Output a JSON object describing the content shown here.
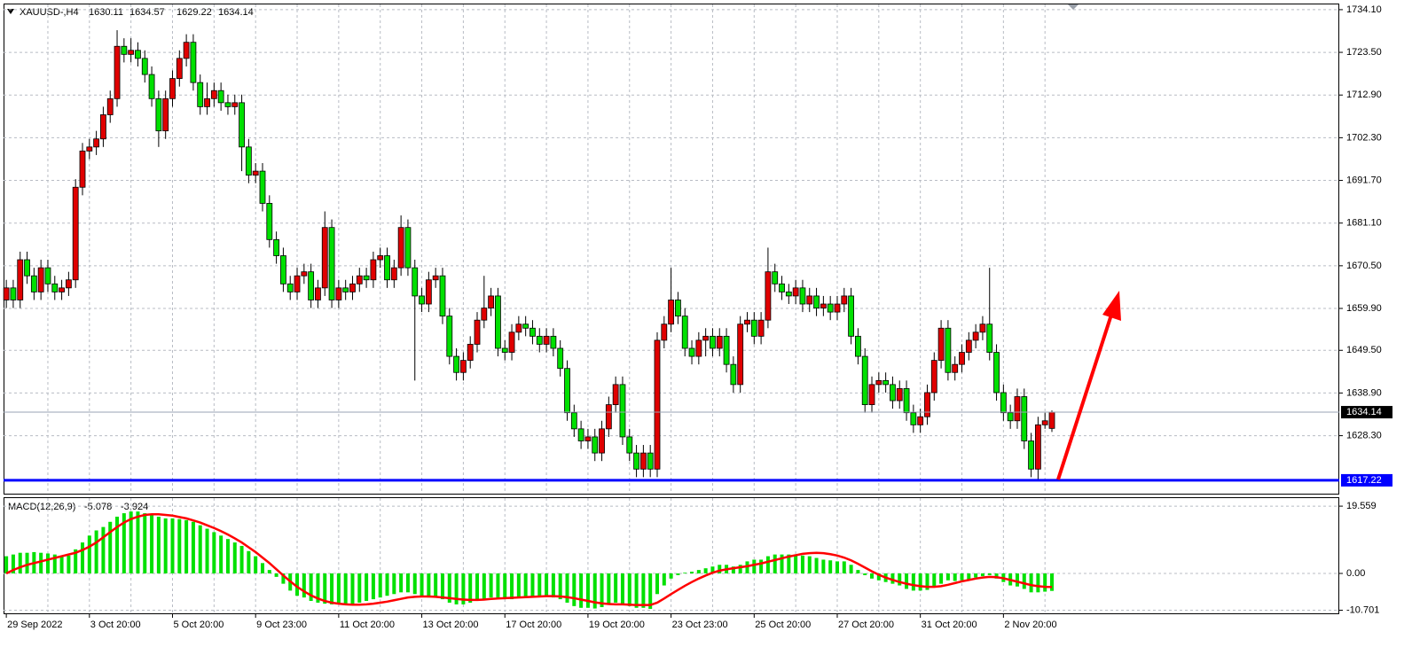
{
  "chart_data": [
    {
      "type": "candlestick",
      "title": "XAUUSD-,H4",
      "open": [
        1662,
        1665,
        1662,
        1672,
        1668,
        1664,
        1670,
        1666,
        1664,
        1665,
        1667,
        1690,
        1699,
        1700,
        1702,
        1708,
        1712,
        1725,
        1723,
        1724,
        1722,
        1718,
        1712,
        1704,
        1712,
        1717,
        1722,
        1726,
        1716,
        1710,
        1712,
        1714,
        1711,
        1710,
        1711,
        1700,
        1693,
        1694,
        1686,
        1677,
        1673,
        1666,
        1664,
        1668,
        1669,
        1662,
        1665,
        1680,
        1662,
        1665,
        1664,
        1666,
        1668,
        1667,
        1672,
        1673,
        1667,
        1670,
        1680,
        1670,
        1663,
        1661,
        1667,
        1668,
        1658,
        1648,
        1644,
        1647,
        1651,
        1657,
        1660,
        1663,
        1650,
        1649,
        1654,
        1656,
        1655,
        1653,
        1651,
        1653,
        1650,
        1645,
        1634,
        1630,
        1627,
        1628,
        1624,
        1630,
        1636,
        1641,
        1628,
        1624,
        1620,
        1624,
        1620,
        1652,
        1656,
        1662,
        1658,
        1650,
        1648,
        1652,
        1653,
        1650,
        1653,
        1646,
        1641,
        1656,
        1657,
        1653,
        1657,
        1669,
        1666,
        1664,
        1663,
        1665,
        1661,
        1663,
        1660,
        1661,
        1659,
        1661,
        1663,
        1653,
        1648,
        1636,
        1641,
        1642,
        1641,
        1637,
        1640,
        1634,
        1631,
        1633,
        1639,
        1647,
        1655,
        1644,
        1646,
        1649,
        1652,
        1654,
        1656,
        1649,
        1639,
        1634,
        1632,
        1638,
        1627,
        1620,
        1631,
        1630.11
      ],
      "high": [
        1667,
        1667,
        1674,
        1674,
        1670,
        1672,
        1672,
        1668,
        1667,
        1669,
        1692,
        1701,
        1702,
        1704,
        1710,
        1714,
        1729,
        1727,
        1727,
        1726,
        1724,
        1720,
        1714,
        1714,
        1719,
        1724,
        1728,
        1728,
        1718,
        1716,
        1716,
        1716,
        1713,
        1713,
        1713,
        1702,
        1696,
        1696,
        1688,
        1679,
        1675,
        1668,
        1670,
        1671,
        1671,
        1667,
        1684,
        1682,
        1667,
        1667,
        1668,
        1670,
        1670,
        1674,
        1675,
        1675,
        1672,
        1683,
        1682,
        1672,
        1665,
        1669,
        1670,
        1670,
        1660,
        1650,
        1649,
        1653,
        1659,
        1668,
        1665,
        1665,
        1652,
        1656,
        1658,
        1658,
        1657,
        1655,
        1655,
        1655,
        1652,
        1647,
        1636,
        1632,
        1630,
        1630,
        1632,
        1638,
        1643,
        1643,
        1630,
        1626,
        1626,
        1626,
        1654,
        1658,
        1670,
        1664,
        1660,
        1652,
        1654,
        1655,
        1655,
        1655,
        1655,
        1648,
        1658,
        1659,
        1659,
        1659,
        1675,
        1671,
        1668,
        1666,
        1667,
        1667,
        1665,
        1665,
        1663,
        1663,
        1663,
        1665,
        1665,
        1655,
        1650,
        1643,
        1644,
        1644,
        1643,
        1642,
        1642,
        1636,
        1635,
        1641,
        1649,
        1657,
        1657,
        1648,
        1651,
        1654,
        1656,
        1658,
        1670,
        1651,
        1641,
        1636,
        1640,
        1640,
        1629,
        1633,
        1634,
        1634.57
      ],
      "low": [
        1660,
        1660,
        1660,
        1666,
        1662,
        1662,
        1664,
        1662,
        1662,
        1663,
        1665,
        1688,
        1697,
        1698,
        1700,
        1706,
        1710,
        1721,
        1721,
        1720,
        1716,
        1710,
        1700,
        1702,
        1710,
        1715,
        1720,
        1714,
        1708,
        1708,
        1710,
        1709,
        1708,
        1708,
        1694,
        1691,
        1691,
        1684,
        1675,
        1671,
        1664,
        1662,
        1662,
        1666,
        1660,
        1660,
        1663,
        1660,
        1660,
        1662,
        1662,
        1664,
        1665,
        1665,
        1670,
        1665,
        1665,
        1668,
        1668,
        1642,
        1659,
        1659,
        1665,
        1656,
        1646,
        1642,
        1642,
        1645,
        1649,
        1655,
        1658,
        1648,
        1647,
        1647,
        1652,
        1653,
        1651,
        1649,
        1649,
        1648,
        1643,
        1632,
        1628,
        1625,
        1625,
        1622,
        1622,
        1628,
        1634,
        1626,
        1622,
        1618,
        1618,
        1618,
        1618,
        1650,
        1654,
        1656,
        1648,
        1646,
        1646,
        1648,
        1648,
        1648,
        1644,
        1639,
        1639,
        1654,
        1651,
        1651,
        1655,
        1664,
        1662,
        1661,
        1661,
        1659,
        1659,
        1658,
        1658,
        1657,
        1657,
        1659,
        1651,
        1646,
        1634,
        1634,
        1639,
        1639,
        1635,
        1635,
        1632,
        1629,
        1629,
        1631,
        1637,
        1645,
        1642,
        1642,
        1644,
        1647,
        1650,
        1652,
        1647,
        1637,
        1632,
        1630,
        1630,
        1625,
        1618,
        1617.5,
        1630,
        1629.22
      ],
      "close": [
        1665,
        1662,
        1672,
        1668,
        1664,
        1670,
        1666,
        1664,
        1665,
        1667,
        1690,
        1699,
        1700,
        1702,
        1708,
        1712,
        1725,
        1723,
        1724,
        1722,
        1718,
        1712,
        1704,
        1712,
        1717,
        1722,
        1726,
        1716,
        1710,
        1712,
        1714,
        1711,
        1710,
        1711,
        1700,
        1693,
        1694,
        1686,
        1677,
        1673,
        1666,
        1664,
        1668,
        1669,
        1662,
        1665,
        1680,
        1662,
        1665,
        1664,
        1666,
        1668,
        1667,
        1672,
        1673,
        1667,
        1670,
        1680,
        1670,
        1663,
        1661,
        1667,
        1668,
        1658,
        1648,
        1644,
        1647,
        1651,
        1657,
        1660,
        1663,
        1650,
        1649,
        1654,
        1656,
        1655,
        1653,
        1651,
        1653,
        1650,
        1645,
        1634,
        1630,
        1627,
        1628,
        1624,
        1630,
        1636,
        1641,
        1628,
        1624,
        1620,
        1624,
        1620,
        1652,
        1656,
        1662,
        1658,
        1650,
        1648,
        1652,
        1653,
        1650,
        1653,
        1646,
        1641,
        1656,
        1657,
        1653,
        1657,
        1669,
        1666,
        1664,
        1663,
        1665,
        1661,
        1663,
        1660,
        1661,
        1659,
        1661,
        1663,
        1653,
        1648,
        1636,
        1641,
        1642,
        1641,
        1637,
        1640,
        1634,
        1631,
        1633,
        1639,
        1647,
        1655,
        1644,
        1646,
        1649,
        1652,
        1654,
        1656,
        1649,
        1639,
        1634,
        1632,
        1638,
        1627,
        1620,
        1631,
        1632,
        1634.14
      ],
      "colors": {
        "up": "#e00000",
        "down": "#00e000"
      },
      "support_level": 1617.22,
      "support_color": "#0000ff",
      "ylim": [
        1613.9,
        1735.4
      ],
      "yticks": [
        {
          "value": 1734.1,
          "label": "1734.10"
        },
        {
          "value": 1723.5,
          "label": "1723.50"
        },
        {
          "value": 1712.9,
          "label": "1712.90"
        },
        {
          "value": 1702.3,
          "label": "1702.30"
        },
        {
          "value": 1691.7,
          "label": "1691.70"
        },
        {
          "value": 1681.1,
          "label": "1681.10"
        },
        {
          "value": 1670.5,
          "label": "1670.50"
        },
        {
          "value": 1659.9,
          "label": "1659.90"
        },
        {
          "value": 1649.5,
          "label": "1649.50"
        },
        {
          "value": 1638.9,
          "label": "1638.90"
        },
        {
          "value": 1628.3,
          "label": "1628.30"
        }
      ],
      "xlim": [
        -0.4,
        192.5
      ],
      "xticks": [
        {
          "value": 0,
          "label": "29 Sep 2022"
        },
        {
          "value": 12,
          "label": "3 Oct 20:00"
        },
        {
          "value": 24,
          "label": "5 Oct 20:00"
        },
        {
          "value": 36,
          "label": "9 Oct 23:00"
        },
        {
          "value": 48,
          "label": "11 Oct 20:00"
        },
        {
          "value": 60,
          "label": "13 Oct 20:00"
        },
        {
          "value": 72,
          "label": "17 Oct 20:00"
        },
        {
          "value": 84,
          "label": "19 Oct 20:00"
        },
        {
          "value": 96,
          "label": "23 Oct 23:00"
        },
        {
          "value": 108,
          "label": "25 Oct 20:00"
        },
        {
          "value": 120,
          "label": "27 Oct 20:00"
        },
        {
          "value": 132,
          "label": "31 Oct 20:00"
        },
        {
          "value": 144,
          "label": "2 Nov 20:00"
        }
      ],
      "grid": true
    },
    {
      "type": "macd",
      "title": "MACD(12,26,9)",
      "histogram": {
        "color": "#00e000",
        "values": [
          5,
          5.5,
          6,
          6,
          6.2,
          6,
          5.8,
          5.5,
          5,
          5.2,
          7,
          9,
          11,
          12.5,
          13.5,
          15,
          16.5,
          17.5,
          18,
          18,
          17.5,
          17,
          16.5,
          16,
          16,
          15.8,
          15.5,
          15,
          14,
          13,
          12,
          11,
          10,
          9,
          8,
          6.5,
          5,
          3,
          1,
          -1,
          -3,
          -5,
          -6.5,
          -7,
          -8,
          -8.5,
          -8.8,
          -9,
          -9,
          -9,
          -8.8,
          -8.5,
          -8,
          -7.5,
          -7,
          -6.5,
          -6,
          -5.5,
          -5.5,
          -6,
          -6.5,
          -7,
          -7,
          -7.5,
          -8.5,
          -9,
          -9,
          -8.5,
          -8,
          -7.5,
          -7,
          -7.5,
          -7.5,
          -7.5,
          -7,
          -7,
          -6.8,
          -6.8,
          -6.5,
          -7,
          -7.5,
          -8.5,
          -9.5,
          -10,
          -10,
          -10.2,
          -9.8,
          -9,
          -8.5,
          -9,
          -9.5,
          -10,
          -10,
          -10.3,
          -6,
          -3.5,
          -1.5,
          -0.5,
          0.2,
          0.5,
          1,
          1.5,
          2,
          2.5,
          2.5,
          2,
          2.5,
          3.5,
          4,
          4,
          5,
          5.5,
          5.5,
          5.5,
          5.5,
          5.2,
          5,
          4.5,
          4,
          3.8,
          3.5,
          3.5,
          2.5,
          1,
          -0.5,
          -1.5,
          -2,
          -2.5,
          -3,
          -3.5,
          -4.5,
          -5,
          -5,
          -4.8,
          -4,
          -3,
          -2,
          -2.2,
          -2,
          -1.8,
          -1.2,
          -0.8,
          -0.5,
          -1.5,
          -2.5,
          -3.5,
          -3.8,
          -4.5,
          -5.5,
          -5.5,
          -5.3,
          -5.078
        ]
      },
      "signal": {
        "color": "#ff0000",
        "values": [
          0,
          1,
          1.8,
          2.5,
          3,
          3.5,
          4,
          4.5,
          5,
          5.5,
          6,
          6.8,
          7.8,
          9,
          10.5,
          12,
          13.5,
          14.8,
          15.8,
          16.5,
          17,
          17.2,
          17.2,
          17,
          16.8,
          16.4,
          16,
          15.4,
          14.8,
          14,
          13.2,
          12.3,
          11.3,
          10.2,
          9,
          7.6,
          6.2,
          4.6,
          3,
          1.2,
          -0.6,
          -2.3,
          -3.9,
          -5.2,
          -6.4,
          -7.3,
          -8,
          -8.5,
          -8.8,
          -9,
          -9.1,
          -9.1,
          -9,
          -8.8,
          -8.5,
          -8.2,
          -7.8,
          -7.4,
          -7,
          -6.8,
          -6.7,
          -6.7,
          -6.8,
          -7,
          -7.2,
          -7.4,
          -7.6,
          -7.7,
          -7.7,
          -7.6,
          -7.4,
          -7.3,
          -7.2,
          -7.1,
          -7,
          -6.9,
          -6.8,
          -6.7,
          -6.6,
          -6.6,
          -6.7,
          -6.9,
          -7.2,
          -7.6,
          -8,
          -8.4,
          -8.7,
          -8.9,
          -9,
          -9,
          -9.1,
          -9.2,
          -9.2,
          -9.2,
          -8.5,
          -7.3,
          -6,
          -4.8,
          -3.6,
          -2.5,
          -1.5,
          -0.6,
          0.2,
          0.8,
          1.2,
          1.5,
          1.8,
          2.1,
          2.5,
          2.9,
          3.4,
          3.9,
          4.4,
          4.9,
          5.3,
          5.7,
          5.9,
          6,
          5.9,
          5.6,
          5.2,
          4.6,
          3.8,
          2.8,
          1.7,
          0.6,
          -0.4,
          -1.2,
          -1.9,
          -2.5,
          -3,
          -3.4,
          -3.7,
          -3.9,
          -3.9,
          -3.7,
          -3.3,
          -2.8,
          -2.3,
          -1.9,
          -1.5,
          -1.2,
          -1,
          -1.1,
          -1.4,
          -1.9,
          -2.4,
          -2.9,
          -3.4,
          -3.7,
          -3.9,
          -3.924
        ]
      },
      "ylim": [
        -11.6,
        21.9
      ],
      "yticks": [
        19.559,
        {
          "value": 0,
          "label": "0.00"
        },
        -10.701
      ],
      "grid": true
    }
  ]
}
